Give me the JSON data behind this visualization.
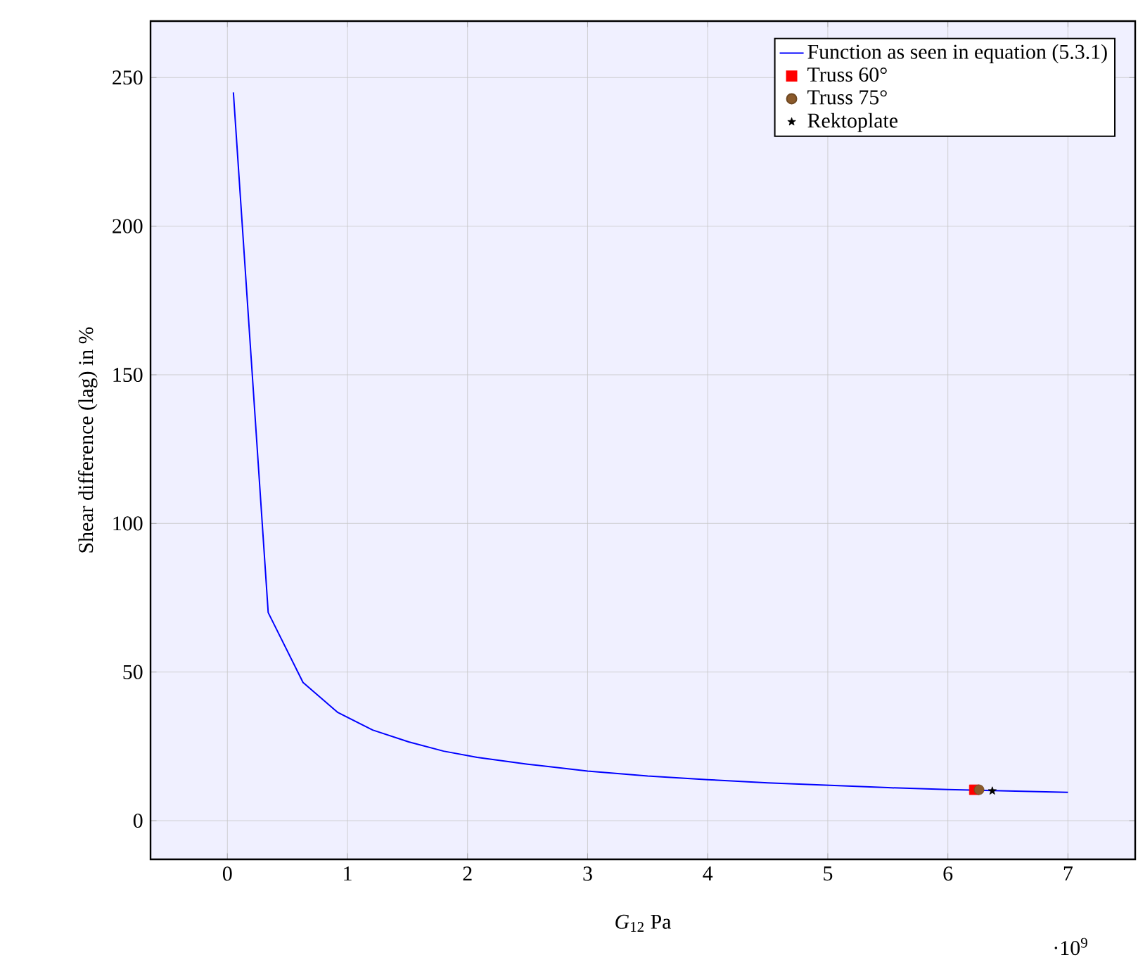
{
  "chart_data": {
    "type": "line",
    "xlabel": "*G*$_{12}$ Pa",
    "ylabel": "Shear difference (lag) in %",
    "annotations": [
      "·10$^{9}$"
    ],
    "xlim": [
      -0.64,
      7.56
    ],
    "ylim": [
      -13,
      269
    ],
    "xticks": [
      0,
      1,
      2,
      3,
      4,
      5,
      6,
      7
    ],
    "yticks": [
      0,
      50,
      100,
      150,
      200,
      250
    ],
    "grid": true,
    "legend": "top right",
    "series": [
      {
        "name": "Function as seen in equation (5.3.1)",
        "type": "line",
        "color": "#0000ff",
        "x": [
          0.05,
          0.34,
          0.63,
          0.92,
          1.21,
          1.51,
          1.8,
          2.08,
          2.5,
          3.0,
          3.5,
          4.0,
          4.5,
          5.0,
          5.5,
          6.0,
          6.5,
          7.0
        ],
        "values": [
          245,
          70,
          46.5,
          36.4,
          30.5,
          26.5,
          23.4,
          21.3,
          19,
          16.7,
          15,
          13.8,
          12.7,
          11.9,
          11.1,
          10.5,
          10,
          9.5
        ]
      },
      {
        "name": "Truss 60°",
        "type": "scatter",
        "marker": "square",
        "color": "#ff0000",
        "x": [
          6.22
        ],
        "values": [
          10.4
        ]
      },
      {
        "name": "Truss 75°",
        "type": "scatter",
        "marker": "circle",
        "color": "#8b5a2b",
        "x": [
          6.26
        ],
        "values": [
          10.4
        ]
      },
      {
        "name": "Rektoplate",
        "type": "scatter",
        "marker": "star",
        "color": "#000000",
        "x": [
          6.37
        ],
        "values": [
          10.0
        ]
      }
    ]
  }
}
